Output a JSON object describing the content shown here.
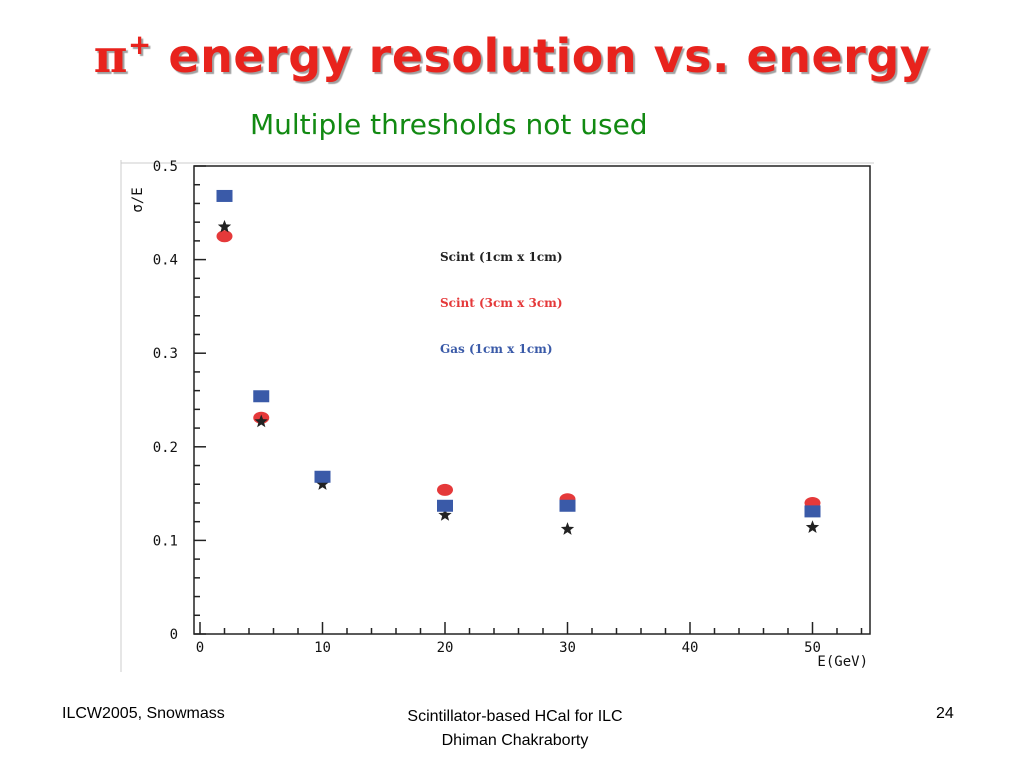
{
  "slide": {
    "title_symbol": "π",
    "title_sup": "+",
    "title_text": " energy resolution vs. energy",
    "subtitle": "Multiple thresholds not used"
  },
  "footer": {
    "left": "ILCW2005, Snowmass",
    "center_line1": "Scintillator-based HCal for ILC",
    "center_line2": "Dhiman Chakraborty",
    "page_number": "24"
  },
  "chart_data": {
    "type": "scatter",
    "xlabel": "E(GeV)",
    "ylabel": "σ/E",
    "xlim": [
      0,
      55
    ],
    "ylim": [
      0,
      0.5
    ],
    "x_ticks": [
      0,
      10,
      20,
      30,
      40,
      50
    ],
    "y_ticks": [
      0,
      0.1,
      0.2,
      0.3,
      0.4,
      0.5
    ],
    "y_tick_labels": [
      "0",
      "0.1",
      "0.2",
      "0.3",
      "0.4",
      "0.5"
    ],
    "grid": false,
    "legend_position": "upper-center",
    "series": [
      {
        "name": "Scint (1cm x 1cm)",
        "marker": "star",
        "color": "#222222",
        "x": [
          2,
          5,
          10,
          20,
          30,
          50
        ],
        "y": [
          0.435,
          0.227,
          0.16,
          0.127,
          0.112,
          0.114
        ]
      },
      {
        "name": "Scint (3cm x 3cm)",
        "marker": "circle",
        "color": "#e5393a",
        "x": [
          2,
          5,
          10,
          20,
          30,
          50
        ],
        "y": [
          0.425,
          0.231,
          0.167,
          0.154,
          0.144,
          0.14
        ]
      },
      {
        "name": "Gas (1cm x 1cm)",
        "marker": "square",
        "color": "#3a5aa8",
        "x": [
          2,
          5,
          10,
          20,
          30,
          50
        ],
        "y": [
          0.468,
          0.254,
          0.168,
          0.137,
          0.137,
          0.131
        ]
      }
    ]
  }
}
